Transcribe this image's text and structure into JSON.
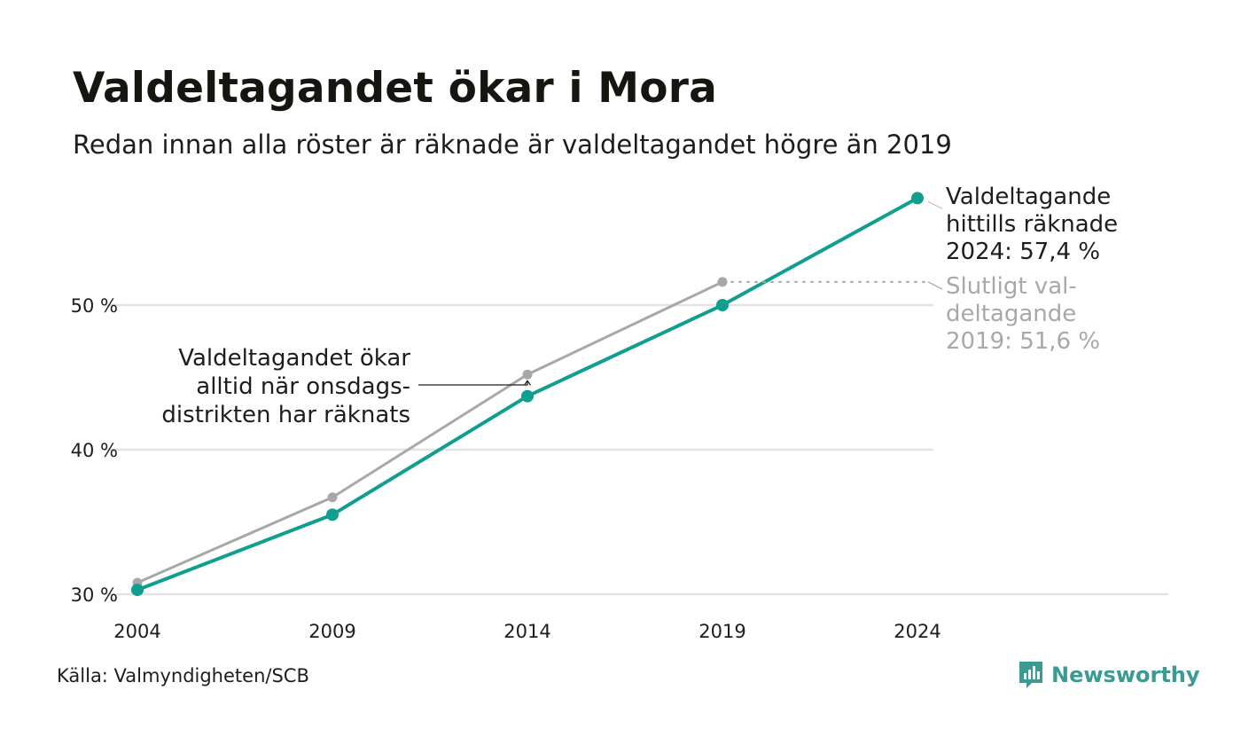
{
  "header": {
    "title": "Valdeltagandet ökar i Mora",
    "subtitle": "Redan innan alla röster är räknade är valdeltagandet högre än 2019"
  },
  "chart_data": {
    "type": "line",
    "title": "Valdeltagandet ökar i Mora",
    "subtitle": "Redan innan alla röster är räknade är valdeltagandet högre än 2019",
    "xlabel": "",
    "ylabel": "",
    "x": [
      2004,
      2009,
      2014,
      2019,
      2024
    ],
    "x_tick_labels": [
      "2004",
      "2009",
      "2014",
      "2019",
      "2024"
    ],
    "ylim": [
      30,
      58
    ],
    "y_ticks": [
      30,
      40,
      50
    ],
    "y_tick_labels": [
      "30 %",
      "40 %",
      "50 %"
    ],
    "grid": true,
    "series": [
      {
        "key": "final",
        "values": [
          30.8,
          36.7,
          45.2,
          51.6,
          null
        ]
      },
      {
        "key": "counted",
        "values": [
          30.3,
          35.5,
          43.7,
          50.0,
          57.4
        ]
      }
    ],
    "annotations": {
      "counted_label": [
        "Valdeltagande",
        "hittills räknade",
        "2024: 57,4 %"
      ],
      "final_label": [
        "Slutligt val-",
        "deltagande",
        "2019: 51,6 %"
      ],
      "wednesday_note": [
        "Valdeltagandet ökar",
        "alltid när onsdags-",
        "distrikten har räknats"
      ]
    },
    "colors": {
      "counted": "#0f9e8f",
      "final": "#a8a8a8",
      "grid": "#e3e3e3",
      "text": "#1d1d1b",
      "final_text": "#a8a8a8"
    }
  },
  "footer": {
    "source": "Källa: Valmyndigheten/SCB",
    "brand": "Newsworthy",
    "brand_icon": "newsworthy-logo-icon"
  }
}
